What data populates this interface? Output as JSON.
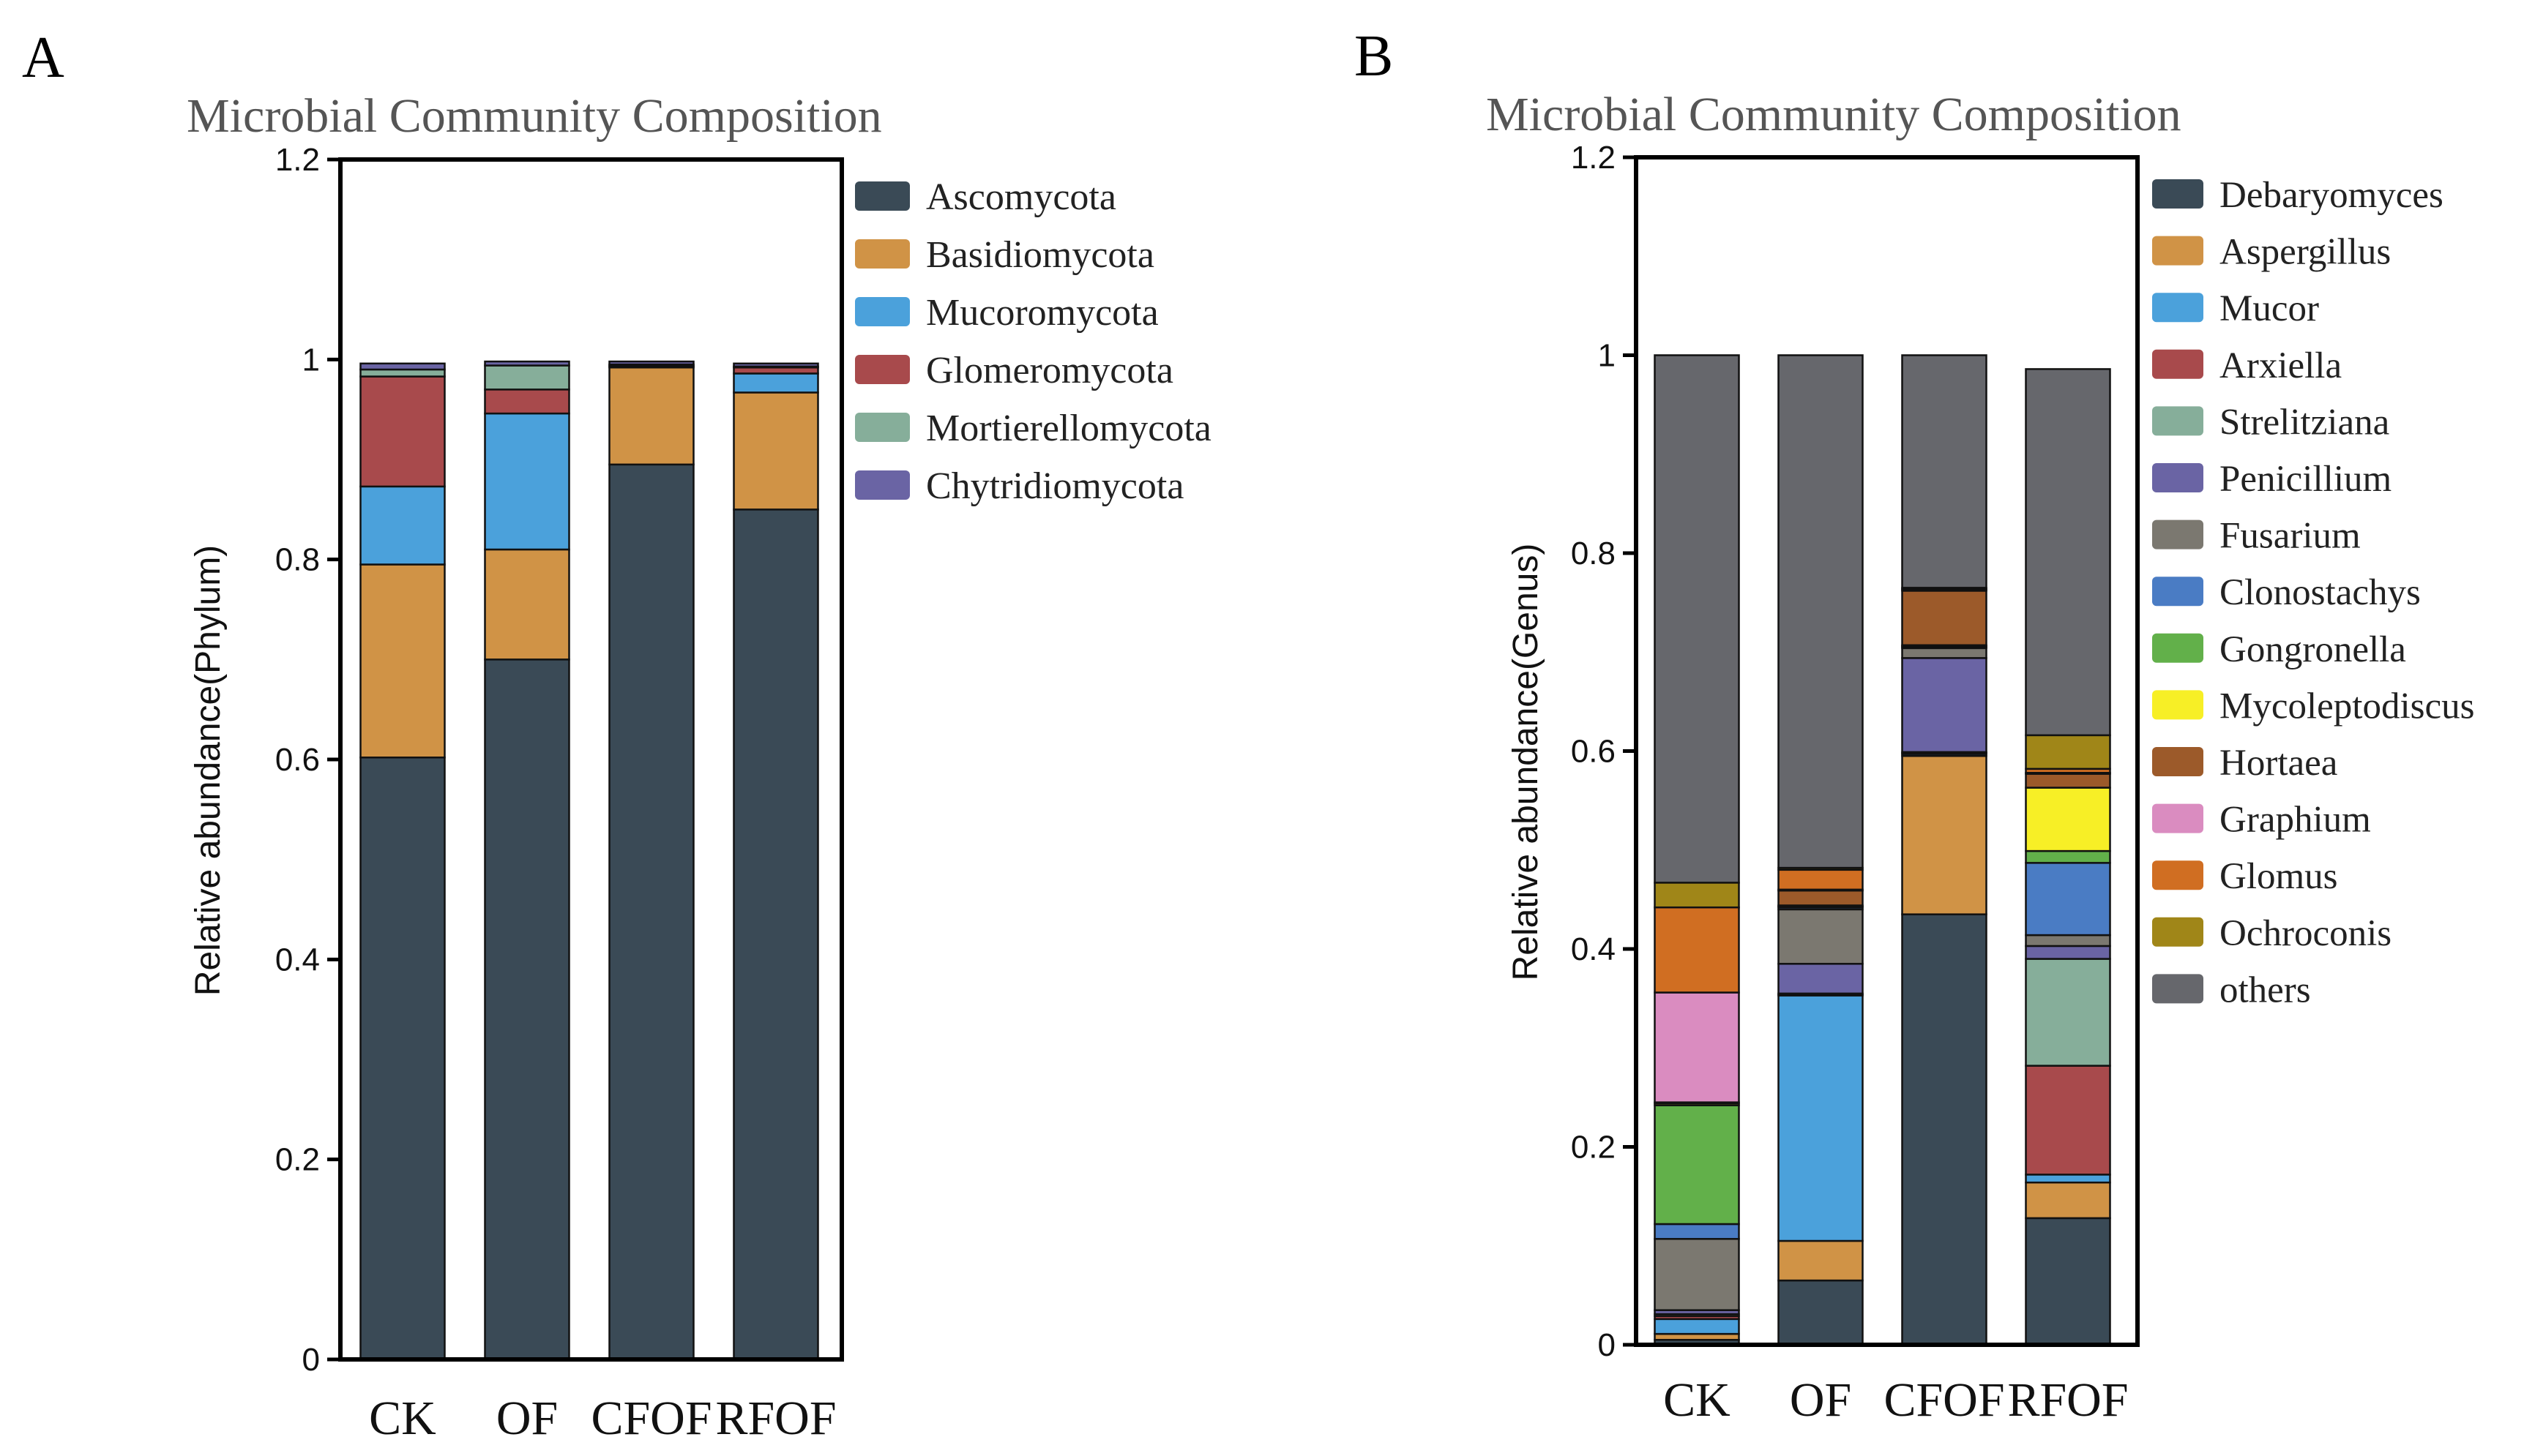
{
  "chart_data": [
    {
      "panel_label": "A",
      "type": "bar",
      "stacked": true,
      "title": "Microbial Community Composition",
      "xlabel": "",
      "ylabel": "Relative abundance(Phylum)",
      "ylim": [
        0,
        1.2
      ],
      "yticks": [
        "0",
        "0.2",
        "0.4",
        "0.6",
        "0.8",
        "1",
        "1.2"
      ],
      "categories": [
        "CK",
        "OF",
        "CFOF",
        "RFOF"
      ],
      "legend_position": "right",
      "series": [
        {
          "name": "Ascomycota",
          "color": "#3a4a56",
          "values": [
            0.602,
            0.7,
            0.895,
            0.85
          ]
        },
        {
          "name": "Basidiomycota",
          "color": "#d09346",
          "values": [
            0.193,
            0.11,
            0.097,
            0.117
          ]
        },
        {
          "name": "Mucoromycota",
          "color": "#4ba1db",
          "values": [
            0.078,
            0.136,
            0.001,
            0.019
          ]
        },
        {
          "name": "Glomeromycota",
          "color": "#a84a4c",
          "values": [
            0.11,
            0.024,
            0.001,
            0.006
          ]
        },
        {
          "name": "Mortierellomycota",
          "color": "#86ae9a",
          "values": [
            0.007,
            0.024,
            0.001,
            0.001
          ]
        },
        {
          "name": "Chytridiomycota",
          "color": "#6a64a4",
          "values": [
            0.006,
            0.004,
            0.003,
            0.003
          ]
        }
      ]
    },
    {
      "panel_label": "B",
      "type": "bar",
      "stacked": true,
      "title": "Microbial Community Composition",
      "xlabel": "",
      "ylabel": "Relative abundance(Genus)",
      "ylim": [
        0,
        1.2
      ],
      "yticks": [
        "0",
        "0.2",
        "0.4",
        "0.6",
        "0.8",
        "1",
        "1.2"
      ],
      "categories": [
        "CK",
        "OF",
        "CFOF",
        "RFOF"
      ],
      "legend_position": "right",
      "series": [
        {
          "name": "Debaryomyces",
          "color": "#3a4a56",
          "values": [
            0.005,
            0.065,
            0.435,
            0.128
          ]
        },
        {
          "name": "Aspergillus",
          "color": "#d09346",
          "values": [
            0.006,
            0.04,
            0.16,
            0.036
          ]
        },
        {
          "name": "Mucor",
          "color": "#4ba1db",
          "values": [
            0.015,
            0.248,
            0.002,
            0.008
          ]
        },
        {
          "name": "Arxiella",
          "color": "#a84a4c",
          "values": [
            0.003,
            0.001,
            0.001,
            0.11
          ]
        },
        {
          "name": "Strelitziana",
          "color": "#86ae9a",
          "values": [
            0.002,
            0.001,
            0.001,
            0.108
          ]
        },
        {
          "name": "Penicillium",
          "color": "#6a64a4",
          "values": [
            0.004,
            0.03,
            0.095,
            0.013
          ]
        },
        {
          "name": "Fusarium",
          "color": "#7b7870",
          "values": [
            0.072,
            0.055,
            0.01,
            0.011
          ]
        },
        {
          "name": "Clonostachys",
          "color": "#4a7cc4",
          "values": [
            0.015,
            0.002,
            0.001,
            0.073
          ]
        },
        {
          "name": "Gongronella",
          "color": "#62b04a",
          "values": [
            0.12,
            0.001,
            0.001,
            0.012
          ]
        },
        {
          "name": "Mycoleptodiscus",
          "color": "#f7ef26",
          "values": [
            0.002,
            0.001,
            0.001,
            0.064
          ]
        },
        {
          "name": "Hortaea",
          "color": "#9c5a2a",
          "values": [
            0.001,
            0.015,
            0.055,
            0.014
          ]
        },
        {
          "name": "Graphium",
          "color": "#da8cc0",
          "values": [
            0.111,
            0.001,
            0.001,
            0.001
          ]
        },
        {
          "name": "Glomus",
          "color": "#d06e22",
          "values": [
            0.086,
            0.02,
            0.001,
            0.004
          ]
        },
        {
          "name": "Ochroconis",
          "color": "#a08618",
          "values": [
            0.025,
            0.002,
            0.001,
            0.034
          ]
        },
        {
          "name": "others",
          "color": "#66676c",
          "values": [
            0.533,
            0.518,
            0.235,
            0.37
          ]
        }
      ]
    }
  ]
}
